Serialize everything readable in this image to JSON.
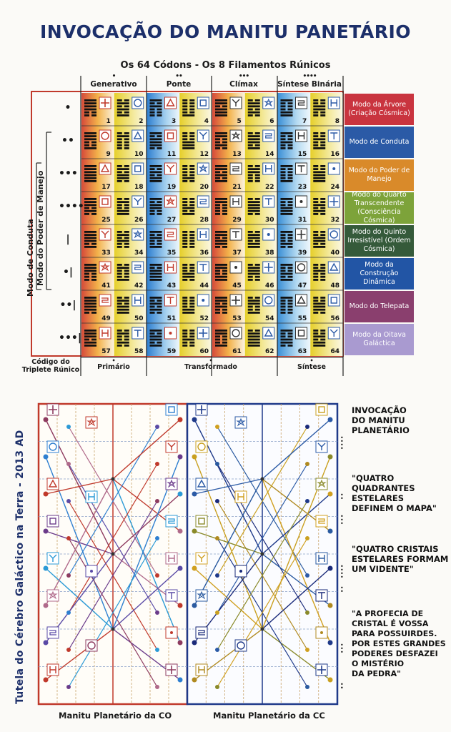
{
  "title": "INVOCAÇÃO DO MANITU PANETÁRIO",
  "subtitle": "Os 64 Códons - Os 8 Filamentos Rúnicos",
  "columns": [
    {
      "label": "Generativo",
      "dots": "•"
    },
    {
      "label": "Ponte",
      "dots": "••"
    },
    {
      "label": "Clímax",
      "dots": "•••"
    },
    {
      "label": "Síntese Binária",
      "dots": "••••"
    }
  ],
  "row_markers": [
    "•",
    "••",
    "•••",
    "••••",
    "|",
    "•|",
    "••|",
    "•••|"
  ],
  "codon_numbers": [
    1,
    2,
    3,
    4,
    5,
    6,
    7,
    8,
    9,
    10,
    11,
    12,
    13,
    14,
    15,
    16,
    17,
    18,
    19,
    20,
    21,
    22,
    23,
    24,
    25,
    26,
    27,
    28,
    29,
    30,
    31,
    32,
    33,
    34,
    35,
    36,
    37,
    38,
    39,
    40,
    41,
    42,
    43,
    44,
    45,
    46,
    47,
    48,
    49,
    50,
    51,
    52,
    53,
    54,
    55,
    56,
    57,
    58,
    59,
    60,
    61,
    62,
    63,
    64
  ],
  "modes": [
    {
      "text": "Modo da Árvore (Criação Cósmica)",
      "color": "#c9343f"
    },
    {
      "text": "Modo de Conduta",
      "color": "#2b5aa6"
    },
    {
      "text": "Modo do Poder de Manejo",
      "color": "#d98a2a"
    },
    {
      "text": "Modo do Quarto Transcendente (Consciência Cósmica)",
      "color": "#7da33a"
    },
    {
      "text": "Modo do Quinto Irresistível (Ordem Cósmica)",
      "color": "#355a3a"
    },
    {
      "text": "Modo da Construção Dinâmica",
      "color": "#2255a5"
    },
    {
      "text": "Modo do Telepata",
      "color": "#8a3f6e"
    },
    {
      "text": "Modo da Oitava Galáctica",
      "color": "#a99ad0"
    }
  ],
  "left_vertical_1": "Modo de Conduta",
  "left_vertical_2": "Modo do Poder de Manejo",
  "bottom_codigo": "Código do Triplete Rúnico",
  "bottom_labels": {
    "primario": "Primário",
    "transformado": "Transformado",
    "sintese": "Síntese"
  },
  "side_vertical": "Tutela do Cérebro Galáctico na Terra - 2013 AD",
  "quotes": [
    "INVOCAÇÃO\nDO MANITU\nPLANETÁRIO",
    "\"QUATRO\nQUADRANTES\nESTELARES\nDEFINEM O MAPA\"",
    "\"QUATRO CRISTAIS\nESTELARES FORMAM\nUM VIDENTE\"",
    "\"A PROFECIA DE\nCRISTAL É VOSSA\nPARA POSSUIRDES.\nPOR ESTES GRANDES\nPODERES DESFAZEI\nO MISTÉRIO\nDA PEDRA\""
  ],
  "footer_left": "Manitu Planetário da CO",
  "footer_right": "Manitu Planetário da CC",
  "colors": {
    "title": "#1c2f6a",
    "left_panel_border": "#c0392b",
    "right_panel_border": "#1f3a8a",
    "band_colors": [
      "#d64a3a",
      "#2e7fd0",
      "#e6cf2a",
      "#3a8fd6"
    ]
  }
}
